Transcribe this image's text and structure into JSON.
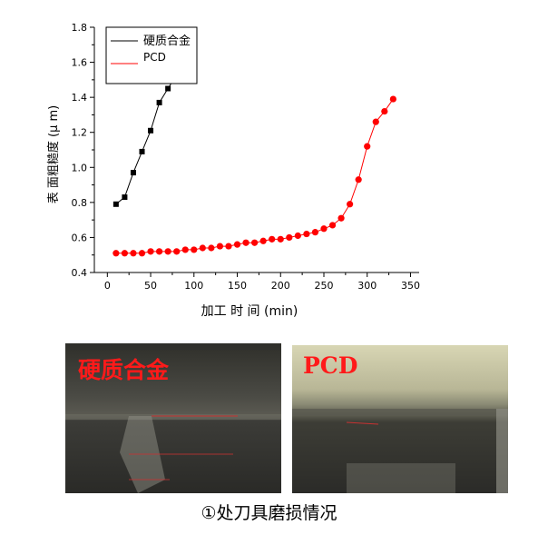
{
  "chart_data": {
    "type": "line",
    "xlabel": "加工 时 间 (min)",
    "ylabel": "表 面粗糙度 (μ m)",
    "xlim": [
      -15,
      360
    ],
    "ylim": [
      0.4,
      1.8
    ],
    "xticks": [
      0,
      50,
      100,
      150,
      200,
      250,
      300,
      350
    ],
    "yticks": [
      0.4,
      0.6,
      0.8,
      1.0,
      1.2,
      1.4,
      1.6,
      1.8
    ],
    "ytick_labels": [
      "0.4",
      "0.6",
      "0.8",
      "1.0",
      "1.2",
      "1.4",
      "1.6",
      "1.8"
    ],
    "grid": false,
    "legend_position": "top-left",
    "series": [
      {
        "name": "硬质合金",
        "color": "#000000",
        "marker": "square",
        "x": [
          10,
          20,
          30,
          40,
          50,
          60,
          70,
          80
        ],
        "y": [
          0.79,
          0.83,
          0.97,
          1.09,
          1.21,
          1.37,
          1.45,
          1.53
        ]
      },
      {
        "name": "PCD",
        "color": "#ff0000",
        "marker": "circle",
        "x": [
          10,
          20,
          30,
          40,
          50,
          60,
          70,
          80,
          90,
          100,
          110,
          120,
          130,
          140,
          150,
          160,
          170,
          180,
          190,
          200,
          210,
          220,
          230,
          240,
          250,
          260,
          270,
          280,
          290,
          300,
          310,
          320,
          330
        ],
        "y": [
          0.51,
          0.51,
          0.51,
          0.51,
          0.52,
          0.52,
          0.52,
          0.52,
          0.53,
          0.53,
          0.54,
          0.54,
          0.55,
          0.55,
          0.56,
          0.57,
          0.57,
          0.58,
          0.59,
          0.59,
          0.6,
          0.61,
          0.62,
          0.63,
          0.65,
          0.67,
          0.71,
          0.79,
          0.93,
          1.12,
          1.26,
          1.32,
          1.39
        ]
      }
    ]
  },
  "photos": {
    "left_label": "硬质合金",
    "right_label": "PCD"
  },
  "caption": "①处刀具磨损情况"
}
